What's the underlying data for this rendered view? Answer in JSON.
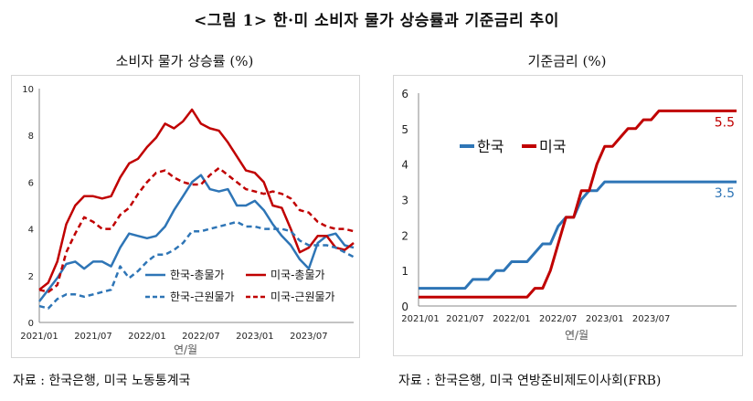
{
  "figure_title": "<그림 1> 한·미 소비자 물가 상승률과 기준금리 추이",
  "left": {
    "subtitle": "소비자 물가 상승률 (%)",
    "source": "자료 : 한국은행, 미국 노동통계국"
  },
  "right": {
    "subtitle": "기준금리 (%)",
    "source": "자료 : 한국은행, 미국 연방준비제도이사회(FRB)"
  },
  "colors": {
    "korea": "#2e75b6",
    "us": "#c00000"
  },
  "chart_data": [
    {
      "type": "line",
      "title": "소비자 물가 상승률 (%)",
      "xlabel": "연/월",
      "ylabel": "",
      "ylim": [
        0,
        10
      ],
      "yticks": [
        0,
        2,
        4,
        6,
        8,
        10
      ],
      "xticks": [
        "2021/01",
        "2021/07",
        "2022/01",
        "2022/07",
        "2023/01",
        "2023/07"
      ],
      "x_start": "2021/01",
      "legend_position": "bottom-right",
      "grid": false,
      "series": [
        {
          "name": "한국-총물가",
          "style": "solid",
          "color": "#2e75b6",
          "values": [
            0.9,
            1.4,
            1.9,
            2.5,
            2.6,
            2.3,
            2.6,
            2.6,
            2.4,
            3.2,
            3.8,
            3.7,
            3.6,
            3.7,
            4.1,
            4.8,
            5.4,
            6.0,
            6.3,
            5.7,
            5.6,
            5.7,
            5.0,
            5.0,
            5.2,
            4.8,
            4.2,
            3.7,
            3.3,
            2.7,
            2.3,
            3.4,
            3.7,
            3.8,
            3.3,
            3.2
          ]
        },
        {
          "name": "미국-총물가",
          "style": "solid",
          "color": "#c00000",
          "values": [
            1.4,
            1.7,
            2.6,
            4.2,
            5.0,
            5.4,
            5.4,
            5.3,
            5.4,
            6.2,
            6.8,
            7.0,
            7.5,
            7.9,
            8.5,
            8.3,
            8.6,
            9.1,
            8.5,
            8.3,
            8.2,
            7.7,
            7.1,
            6.5,
            6.4,
            6.0,
            5.0,
            4.9,
            4.0,
            3.0,
            3.2,
            3.7,
            3.7,
            3.2,
            3.1,
            3.4
          ]
        },
        {
          "name": "한국-근원물가",
          "style": "dashed",
          "color": "#2e75b6",
          "values": [
            0.7,
            0.6,
            1.0,
            1.2,
            1.2,
            1.1,
            1.2,
            1.3,
            1.4,
            2.4,
            1.9,
            2.2,
            2.6,
            2.9,
            2.9,
            3.1,
            3.4,
            3.9,
            3.9,
            4.0,
            4.1,
            4.2,
            4.3,
            4.1,
            4.1,
            4.0,
            4.0,
            4.0,
            3.9,
            3.5,
            3.3,
            3.3,
            3.3,
            3.2,
            3.0,
            2.8
          ]
        },
        {
          "name": "미국-근원물가",
          "style": "dashed",
          "color": "#c00000",
          "values": [
            1.4,
            1.3,
            1.6,
            3.0,
            3.8,
            4.5,
            4.3,
            4.0,
            4.0,
            4.6,
            4.9,
            5.5,
            6.0,
            6.4,
            6.5,
            6.2,
            6.0,
            5.9,
            5.9,
            6.3,
            6.6,
            6.3,
            6.0,
            5.7,
            5.6,
            5.5,
            5.6,
            5.5,
            5.3,
            4.8,
            4.7,
            4.3,
            4.1,
            4.0,
            4.0,
            3.9
          ]
        }
      ]
    },
    {
      "type": "line",
      "title": "기준금리 (%)",
      "xlabel": "연/월",
      "ylabel": "",
      "ylim": [
        0,
        6
      ],
      "yticks": [
        0,
        1,
        2,
        3,
        4,
        5,
        6
      ],
      "xticks": [
        "2021/01",
        "2021/07",
        "2022/01",
        "2022/07",
        "2023/01",
        "2023/07"
      ],
      "x_start": "2021/01",
      "legend_position": "top-left",
      "grid": false,
      "series": [
        {
          "name": "한국",
          "style": "solid",
          "color": "#2e75b6",
          "end_label": "3.5",
          "values": [
            0.5,
            0.5,
            0.5,
            0.5,
            0.5,
            0.5,
            0.5,
            0.75,
            0.75,
            0.75,
            1.0,
            1.0,
            1.25,
            1.25,
            1.25,
            1.5,
            1.75,
            1.75,
            2.25,
            2.5,
            2.5,
            3.0,
            3.25,
            3.25,
            3.5,
            3.5,
            3.5,
            3.5,
            3.5,
            3.5,
            3.5,
            3.5,
            3.5,
            3.5,
            3.5,
            3.5,
            3.5,
            3.5,
            3.5,
            3.5,
            3.5,
            3.5
          ]
        },
        {
          "name": "미국",
          "style": "solid",
          "color": "#c00000",
          "end_label": "5.5",
          "values": [
            0.25,
            0.25,
            0.25,
            0.25,
            0.25,
            0.25,
            0.25,
            0.25,
            0.25,
            0.25,
            0.25,
            0.25,
            0.25,
            0.25,
            0.25,
            0.5,
            0.5,
            1.0,
            1.75,
            2.5,
            2.5,
            3.25,
            3.25,
            4.0,
            4.5,
            4.5,
            4.75,
            5.0,
            5.0,
            5.25,
            5.25,
            5.5,
            5.5,
            5.5,
            5.5,
            5.5,
            5.5,
            5.5,
            5.5,
            5.5,
            5.5,
            5.5
          ]
        }
      ]
    }
  ]
}
